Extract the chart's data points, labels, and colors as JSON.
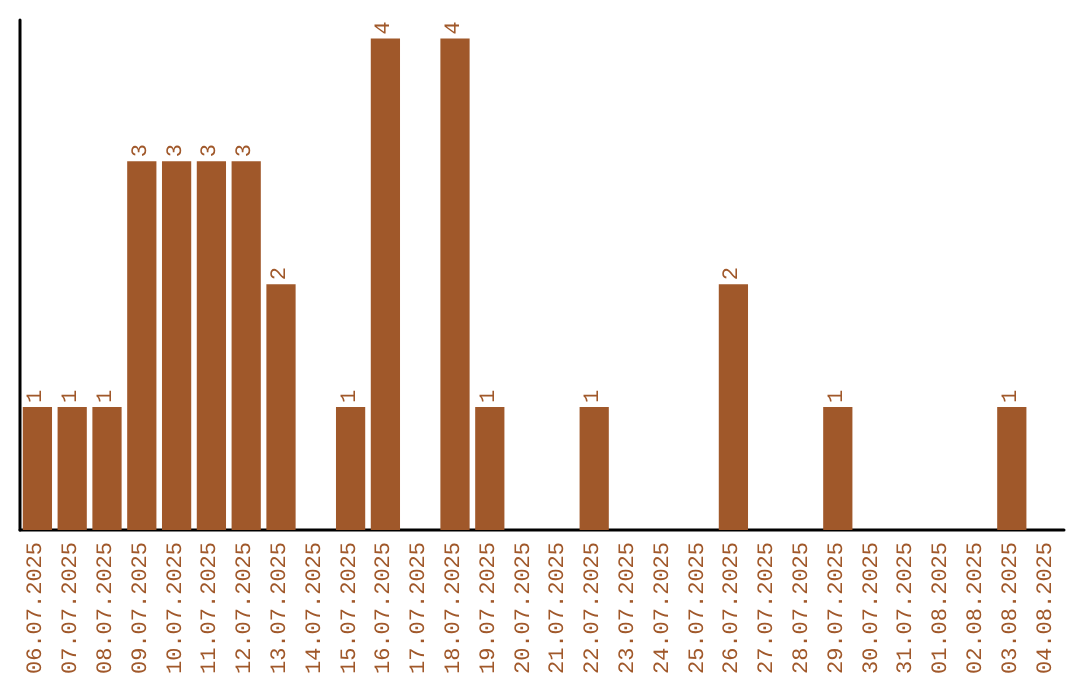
{
  "chart_data": {
    "type": "bar",
    "categories": [
      "06.07.2025",
      "07.07.2025",
      "08.07.2025",
      "09.07.2025",
      "10.07.2025",
      "11.07.2025",
      "12.07.2025",
      "13.07.2025",
      "14.07.2025",
      "15.07.2025",
      "16.07.2025",
      "17.07.2025",
      "18.07.2025",
      "19.07.2025",
      "20.07.2025",
      "21.07.2025",
      "22.07.2025",
      "23.07.2025",
      "24.07.2025",
      "25.07.2025",
      "26.07.2025",
      "27.07.2025",
      "28.07.2025",
      "29.07.2025",
      "30.07.2025",
      "31.07.2025",
      "01.08.2025",
      "02.08.2025",
      "03.08.2025",
      "04.08.2025"
    ],
    "values": [
      1,
      1,
      1,
      3,
      3,
      3,
      3,
      2,
      0,
      1,
      4,
      0,
      4,
      1,
      0,
      0,
      1,
      0,
      0,
      0,
      2,
      0,
      0,
      1,
      0,
      0,
      0,
      0,
      1,
      0
    ],
    "value_labels": [
      "1",
      "1",
      "1",
      "3",
      "3",
      "3",
      "3",
      "2",
      null,
      "1",
      "4",
      null,
      "4",
      "1",
      null,
      null,
      "1",
      null,
      null,
      null,
      "2",
      null,
      null,
      "1",
      null,
      null,
      null,
      null,
      "1",
      null
    ],
    "color": "#a0582a",
    "ylim": [
      0,
      4.15
    ],
    "tick_labels": "x",
    "grid": false
  }
}
